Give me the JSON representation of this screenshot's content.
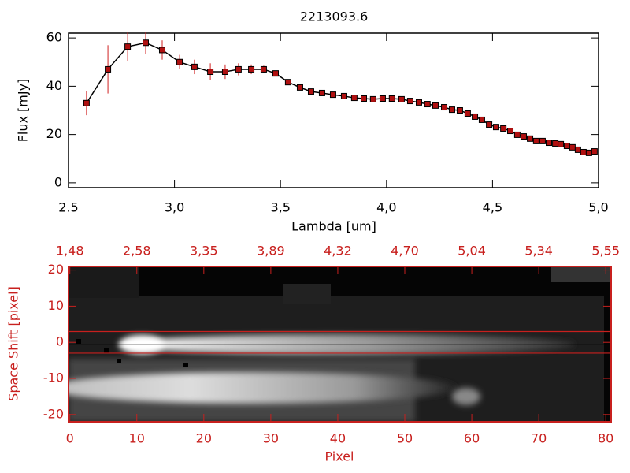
{
  "chart_data": [
    {
      "type": "line",
      "title": "2213093.6",
      "xlabel": "Lambda [um]",
      "ylabel": "Flux [mJy]",
      "x": [
        2.585,
        2.686,
        2.779,
        2.864,
        2.942,
        3.024,
        3.094,
        3.169,
        3.239,
        3.302,
        3.362,
        3.421,
        3.477,
        3.536,
        3.592,
        3.644,
        3.696,
        3.748,
        3.8,
        3.848,
        3.893,
        3.937,
        3.982,
        4.026,
        4.071,
        4.112,
        4.153,
        4.193,
        4.231,
        4.272,
        4.309,
        4.346,
        4.383,
        4.417,
        4.45,
        4.484,
        4.517,
        4.551,
        4.584,
        4.617,
        4.647,
        4.677,
        4.706,
        4.736,
        4.766,
        4.796,
        4.822,
        4.851,
        4.877,
        4.903,
        4.929,
        4.955,
        4.981
      ],
      "values": [
        33,
        47,
        56.4,
        58,
        55,
        50,
        48,
        46,
        46,
        47,
        47,
        47,
        45.3,
        41.7,
        39.5,
        37.8,
        37.2,
        36.5,
        35.9,
        35.2,
        34.9,
        34.6,
        34.9,
        34.9,
        34.6,
        33.9,
        33.3,
        32.6,
        32,
        31.3,
        30.3,
        30,
        28.7,
        27.4,
        26.1,
        24.1,
        23.1,
        22.5,
        21.5,
        19.9,
        19.2,
        18.3,
        17.3,
        17.3,
        16.6,
        16.3,
        16,
        15.3,
        14.7,
        13.7,
        12.7,
        12.4,
        13
      ],
      "errors": [
        5,
        10,
        6,
        4.5,
        4,
        3,
        3,
        3.5,
        3,
        2.5,
        2,
        1.5,
        1,
        1,
        0.8,
        0.7,
        0.7,
        0.6,
        0.6,
        0.6,
        0.6,
        0.6,
        0.6,
        0.6,
        0.6,
        0.6,
        0.6,
        0.6,
        0.6,
        0.6,
        0.6,
        0.6,
        0.6,
        0.6,
        0.6,
        0.6,
        0.6,
        0.6,
        0.6,
        0.6,
        0.6,
        0.6,
        0.6,
        0.6,
        0.6,
        0.6,
        0.6,
        0.6,
        0.6,
        0.6,
        0.6,
        0.6,
        0.6
      ],
      "color": "#000000",
      "marker_color": "#b01010",
      "error_color": "#d02020",
      "xlim": [
        2.5,
        5.0
      ],
      "ylim": [
        -2,
        62
      ],
      "xticks": [
        2.5,
        {
          "value": 3,
          "label": "3,0"
        },
        {
          "value": 3.5,
          "label": "3,5"
        },
        {
          "value": 4,
          "label": "4,0"
        },
        {
          "value": 4.5,
          "label": "4,5"
        },
        {
          "value": 5,
          "label": "5,0"
        }
      ],
      "yticks": [
        0,
        20,
        40,
        60
      ]
    },
    {
      "type": "image",
      "xlabel": "Pixel",
      "ylabel": "Space Shift [pixel]",
      "color": "#c8201e",
      "xlim": [
        -0.2,
        80.8
      ],
      "ylim": [
        -22,
        21
      ],
      "xticks": [
        0,
        10,
        20,
        30,
        40,
        50,
        60,
        70,
        80
      ],
      "x2ticks": [
        {
          "value": 0,
          "label": "1,48"
        },
        {
          "value": 10,
          "label": "2,58"
        },
        {
          "value": 20,
          "label": "3,35"
        },
        {
          "value": 30,
          "label": "3,89"
        },
        {
          "value": 40,
          "label": "4,32"
        },
        {
          "value": 50,
          "label": "4,70"
        },
        {
          "value": 60,
          "label": "5,04"
        },
        {
          "value": 70,
          "label": "5,34"
        },
        {
          "value": 80,
          "label": "5,55"
        }
      ],
      "yticks": [
        -20,
        -10,
        0,
        10,
        20
      ],
      "aperture": [
        -3,
        3
      ]
    }
  ]
}
